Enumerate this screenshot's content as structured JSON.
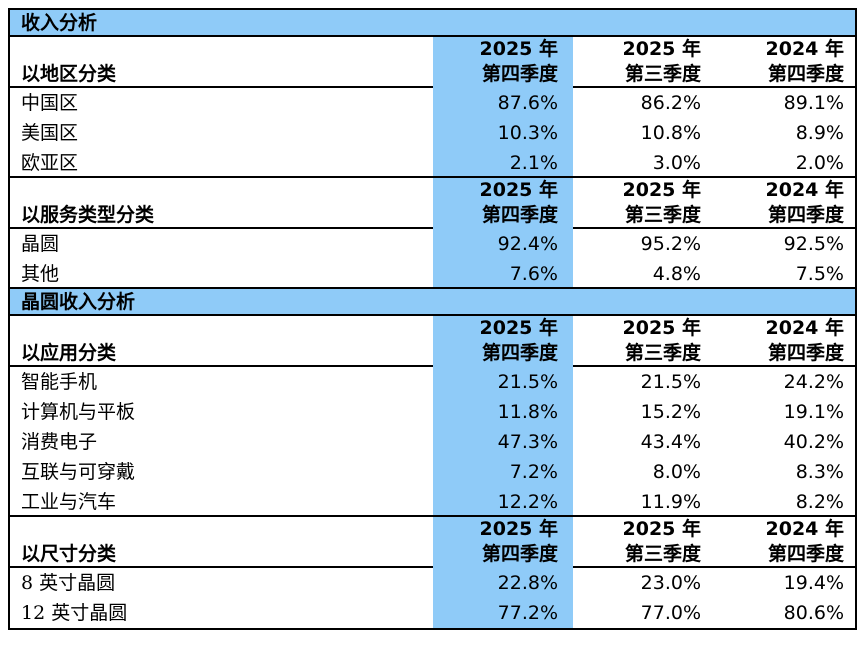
{
  "colors": {
    "highlight_blue": "#8FCBF8",
    "border": "#000000",
    "background": "#FFFFFF",
    "text": "#000000"
  },
  "section_titles": {
    "revenue": "收入分析",
    "wafer_revenue": "晶圆收入分析"
  },
  "columns": {
    "q4_2025": {
      "line1": "2025 年",
      "line2": "第四季度"
    },
    "q3_2025": {
      "line1": "2025 年",
      "line2": "第三季度"
    },
    "q4_2024": {
      "line1": "2024 年",
      "line2": "第四季度"
    }
  },
  "groups": {
    "by_region": {
      "label": "以地区分类",
      "rows": [
        {
          "label": "中国区",
          "values": [
            "87.6%",
            "86.2%",
            "89.1%"
          ]
        },
        {
          "label": "美国区",
          "values": [
            "10.3%",
            "10.8%",
            "8.9%"
          ]
        },
        {
          "label": "欧亚区",
          "values": [
            "2.1%",
            "3.0%",
            "2.0%"
          ]
        }
      ]
    },
    "by_service_type": {
      "label": "以服务类型分类",
      "rows": [
        {
          "label": "晶圆",
          "values": [
            "92.4%",
            "95.2%",
            "92.5%"
          ]
        },
        {
          "label": "其他",
          "values": [
            "7.6%",
            "4.8%",
            "7.5%"
          ]
        }
      ]
    },
    "by_application": {
      "label": "以应用分类",
      "rows": [
        {
          "label": "智能手机",
          "values": [
            "21.5%",
            "21.5%",
            "24.2%"
          ]
        },
        {
          "label": "计算机与平板",
          "values": [
            "11.8%",
            "15.2%",
            "19.1%"
          ]
        },
        {
          "label": "消费电子",
          "values": [
            "47.3%",
            "43.4%",
            "40.2%"
          ]
        },
        {
          "label": "互联与可穿戴",
          "values": [
            "7.2%",
            "8.0%",
            "8.3%"
          ]
        },
        {
          "label": "工业与汽车",
          "values": [
            "12.2%",
            "11.9%",
            "8.2%"
          ]
        }
      ]
    },
    "by_size": {
      "label": "以尺寸分类",
      "rows": [
        {
          "label": "8 英寸晶圆",
          "values": [
            "22.8%",
            "23.0%",
            "19.4%"
          ]
        },
        {
          "label": "12 英寸晶圆",
          "values": [
            "77.2%",
            "77.0%",
            "80.6%"
          ]
        }
      ]
    }
  },
  "chart_data": [
    {
      "type": "table",
      "title": "收入分析",
      "columns": [
        "2025 年第四季度",
        "2025 年第三季度",
        "2024 年第四季度"
      ],
      "highlighted_column": "2025 年第四季度",
      "unit": "%",
      "sections": [
        {
          "group": "以地区分类",
          "categories": [
            "中国区",
            "美国区",
            "欧亚区"
          ],
          "series": [
            {
              "name": "2025 年第四季度",
              "values": [
                87.6,
                10.3,
                2.1
              ]
            },
            {
              "name": "2025 年第三季度",
              "values": [
                86.2,
                10.8,
                3.0
              ]
            },
            {
              "name": "2024 年第四季度",
              "values": [
                89.1,
                8.9,
                2.0
              ]
            }
          ]
        },
        {
          "group": "以服务类型分类",
          "categories": [
            "晶圆",
            "其他"
          ],
          "series": [
            {
              "name": "2025 年第四季度",
              "values": [
                92.4,
                7.6
              ]
            },
            {
              "name": "2025 年第三季度",
              "values": [
                95.2,
                4.8
              ]
            },
            {
              "name": "2024 年第四季度",
              "values": [
                92.5,
                7.5
              ]
            }
          ]
        }
      ]
    },
    {
      "type": "table",
      "title": "晶圆收入分析",
      "columns": [
        "2025 年第四季度",
        "2025 年第三季度",
        "2024 年第四季度"
      ],
      "highlighted_column": "2025 年第四季度",
      "unit": "%",
      "sections": [
        {
          "group": "以应用分类",
          "categories": [
            "智能手机",
            "计算机与平板",
            "消费电子",
            "互联与可穿戴",
            "工业与汽车"
          ],
          "series": [
            {
              "name": "2025 年第四季度",
              "values": [
                21.5,
                11.8,
                47.3,
                7.2,
                12.2
              ]
            },
            {
              "name": "2025 年第三季度",
              "values": [
                21.5,
                15.2,
                43.4,
                8.0,
                11.9
              ]
            },
            {
              "name": "2024 年第四季度",
              "values": [
                24.2,
                19.1,
                40.2,
                8.3,
                8.2
              ]
            }
          ]
        },
        {
          "group": "以尺寸分类",
          "categories": [
            "8 英寸晶圆",
            "12 英寸晶圆"
          ],
          "series": [
            {
              "name": "2025 年第四季度",
              "values": [
                22.8,
                77.2
              ]
            },
            {
              "name": "2025 年第三季度",
              "values": [
                23.0,
                77.0
              ]
            },
            {
              "name": "2024 年第四季度",
              "values": [
                19.4,
                80.6
              ]
            }
          ]
        }
      ]
    }
  ]
}
